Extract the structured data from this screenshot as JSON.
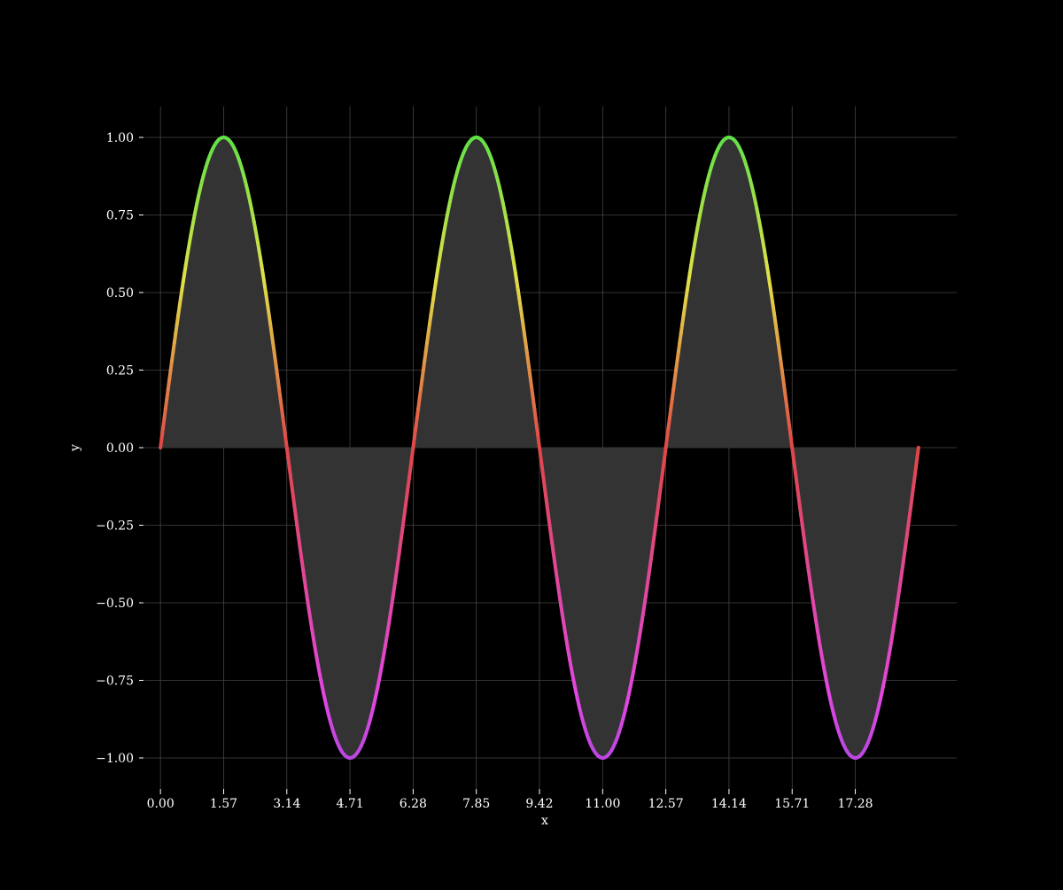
{
  "chart_data": {
    "type": "line",
    "function": "sin(x)",
    "x_range": [
      0,
      18.85
    ],
    "samples": 600,
    "xlabel": "x",
    "ylabel": "y",
    "xlim": [
      -0.4,
      19.8
    ],
    "ylim": [
      -1.1,
      1.1
    ],
    "x_ticks": [
      0,
      1.5708,
      3.1416,
      4.7124,
      6.2832,
      7.854,
      9.4248,
      10.9956,
      12.5664,
      14.1372,
      15.708,
      17.2788
    ],
    "x_tick_labels": [
      "0.00",
      "1.57",
      "3.14",
      "4.71",
      "6.28",
      "7.85",
      "9.42",
      "11.00",
      "12.57",
      "14.14",
      "15.71",
      "17.28"
    ],
    "y_ticks": [
      1.0,
      0.75,
      0.5,
      0.25,
      0.0,
      -0.25,
      -0.5,
      -0.75,
      -1.0
    ],
    "y_tick_labels": [
      "1.00",
      "0.75",
      "0.50",
      "0.25",
      "0.00",
      "−0.25",
      "−0.50",
      "−0.75",
      "−1.00"
    ],
    "grid": true,
    "fill_to_zero": true,
    "line_colormap": "hsv by y: red at 0, green at +1, violet at -1",
    "colors": {
      "background": "#000000",
      "grid": "#444444",
      "fill": "#333333",
      "text": "#ffffff",
      "tick": "#ffffff"
    }
  }
}
